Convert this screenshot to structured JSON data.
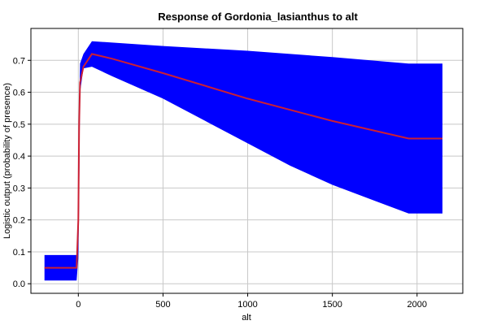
{
  "chart_data": {
    "type": "line",
    "title": "Response of Gordonia_lasianthus to alt",
    "xlabel": "alt",
    "ylabel": "Logistic output (probability of presence)",
    "xlim": [
      -280,
      2270
    ],
    "ylim": [
      -0.03,
      0.8
    ],
    "xticks": [
      0,
      500,
      1000,
      1500,
      2000
    ],
    "yticks": [
      0.0,
      0.1,
      0.2,
      0.3,
      0.4,
      0.5,
      0.6,
      0.7
    ],
    "grid": true,
    "series": [
      {
        "role": "mean",
        "color": "#cc1f33",
        "points": [
          [
            -200,
            0.05
          ],
          [
            -10,
            0.05
          ],
          [
            0,
            0.2
          ],
          [
            5,
            0.5
          ],
          [
            10,
            0.63
          ],
          [
            30,
            0.68
          ],
          [
            80,
            0.72
          ],
          [
            200,
            0.705
          ],
          [
            500,
            0.66
          ],
          [
            1000,
            0.58
          ],
          [
            1500,
            0.51
          ],
          [
            1950,
            0.455
          ],
          [
            2150,
            0.455
          ]
        ]
      },
      {
        "role": "band",
        "color": "#0000ff",
        "upper": [
          [
            -200,
            0.09
          ],
          [
            -10,
            0.09
          ],
          [
            0,
            0.18
          ],
          [
            5,
            0.55
          ],
          [
            10,
            0.69
          ],
          [
            30,
            0.72
          ],
          [
            80,
            0.76
          ],
          [
            500,
            0.745
          ],
          [
            1000,
            0.73
          ],
          [
            1500,
            0.71
          ],
          [
            1950,
            0.69
          ],
          [
            2150,
            0.69
          ]
        ],
        "lower": [
          [
            -200,
            0.01
          ],
          [
            -10,
            0.01
          ],
          [
            0,
            0.08
          ],
          [
            5,
            0.26
          ],
          [
            10,
            0.6
          ],
          [
            30,
            0.675
          ],
          [
            80,
            0.68
          ],
          [
            200,
            0.65
          ],
          [
            500,
            0.58
          ],
          [
            750,
            0.51
          ],
          [
            1000,
            0.44
          ],
          [
            1250,
            0.37
          ],
          [
            1500,
            0.31
          ],
          [
            1750,
            0.26
          ],
          [
            1950,
            0.22
          ],
          [
            2150,
            0.22
          ]
        ]
      }
    ]
  }
}
